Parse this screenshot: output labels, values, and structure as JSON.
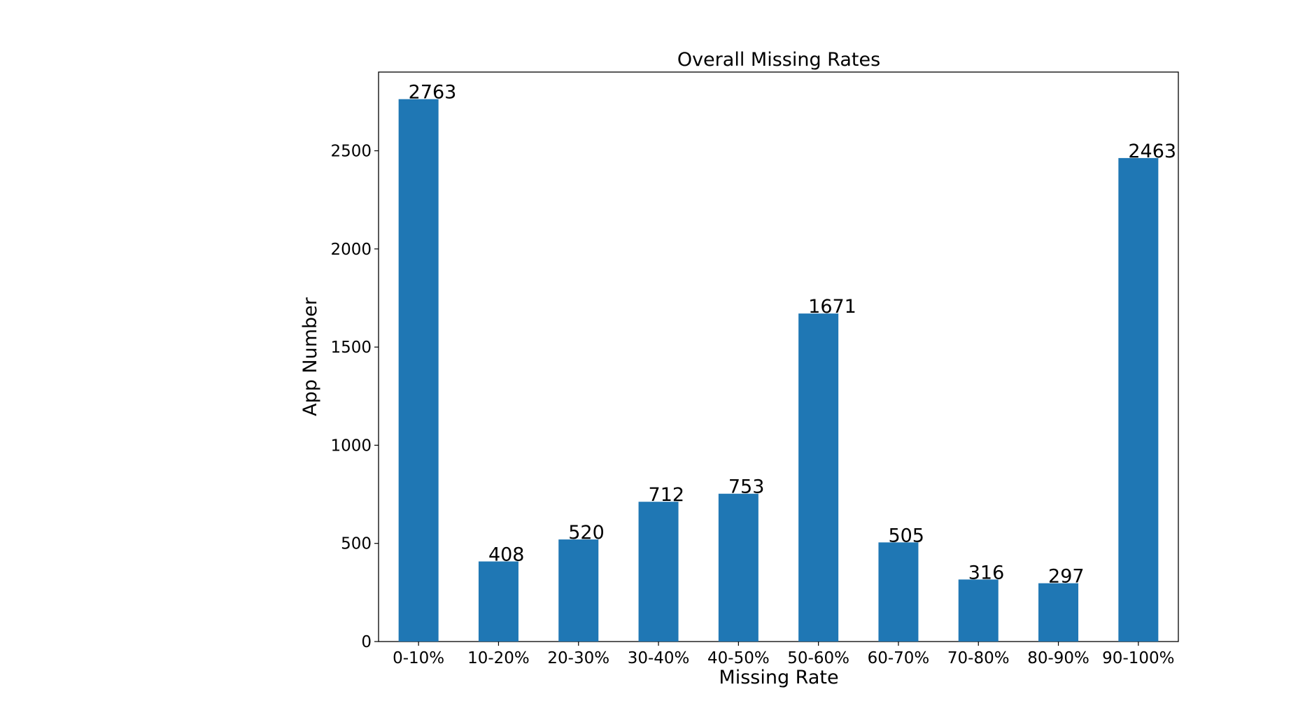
{
  "chart_data": {
    "type": "bar",
    "title": "Overall Missing Rates",
    "xlabel": "Missing Rate",
    "ylabel": "App Number",
    "categories": [
      "0-10%",
      "10-20%",
      "20-30%",
      "30-40%",
      "40-50%",
      "50-60%",
      "60-70%",
      "70-80%",
      "80-90%",
      "90-100%"
    ],
    "values": [
      2763,
      408,
      520,
      712,
      753,
      1671,
      505,
      316,
      297,
      2463
    ],
    "value_labels": [
      "2763",
      "408",
      "520",
      "712",
      "753",
      "1671",
      "505",
      "316",
      "297",
      "2463"
    ],
    "ylim": [
      0,
      2901
    ],
    "yticks": [
      0,
      500,
      1000,
      1500,
      2000,
      2500
    ],
    "ytick_labels": [
      "0",
      "500",
      "1000",
      "1500",
      "2000",
      "2500"
    ],
    "grid": false,
    "legend": "none",
    "bar_color": "#1f77b4"
  }
}
